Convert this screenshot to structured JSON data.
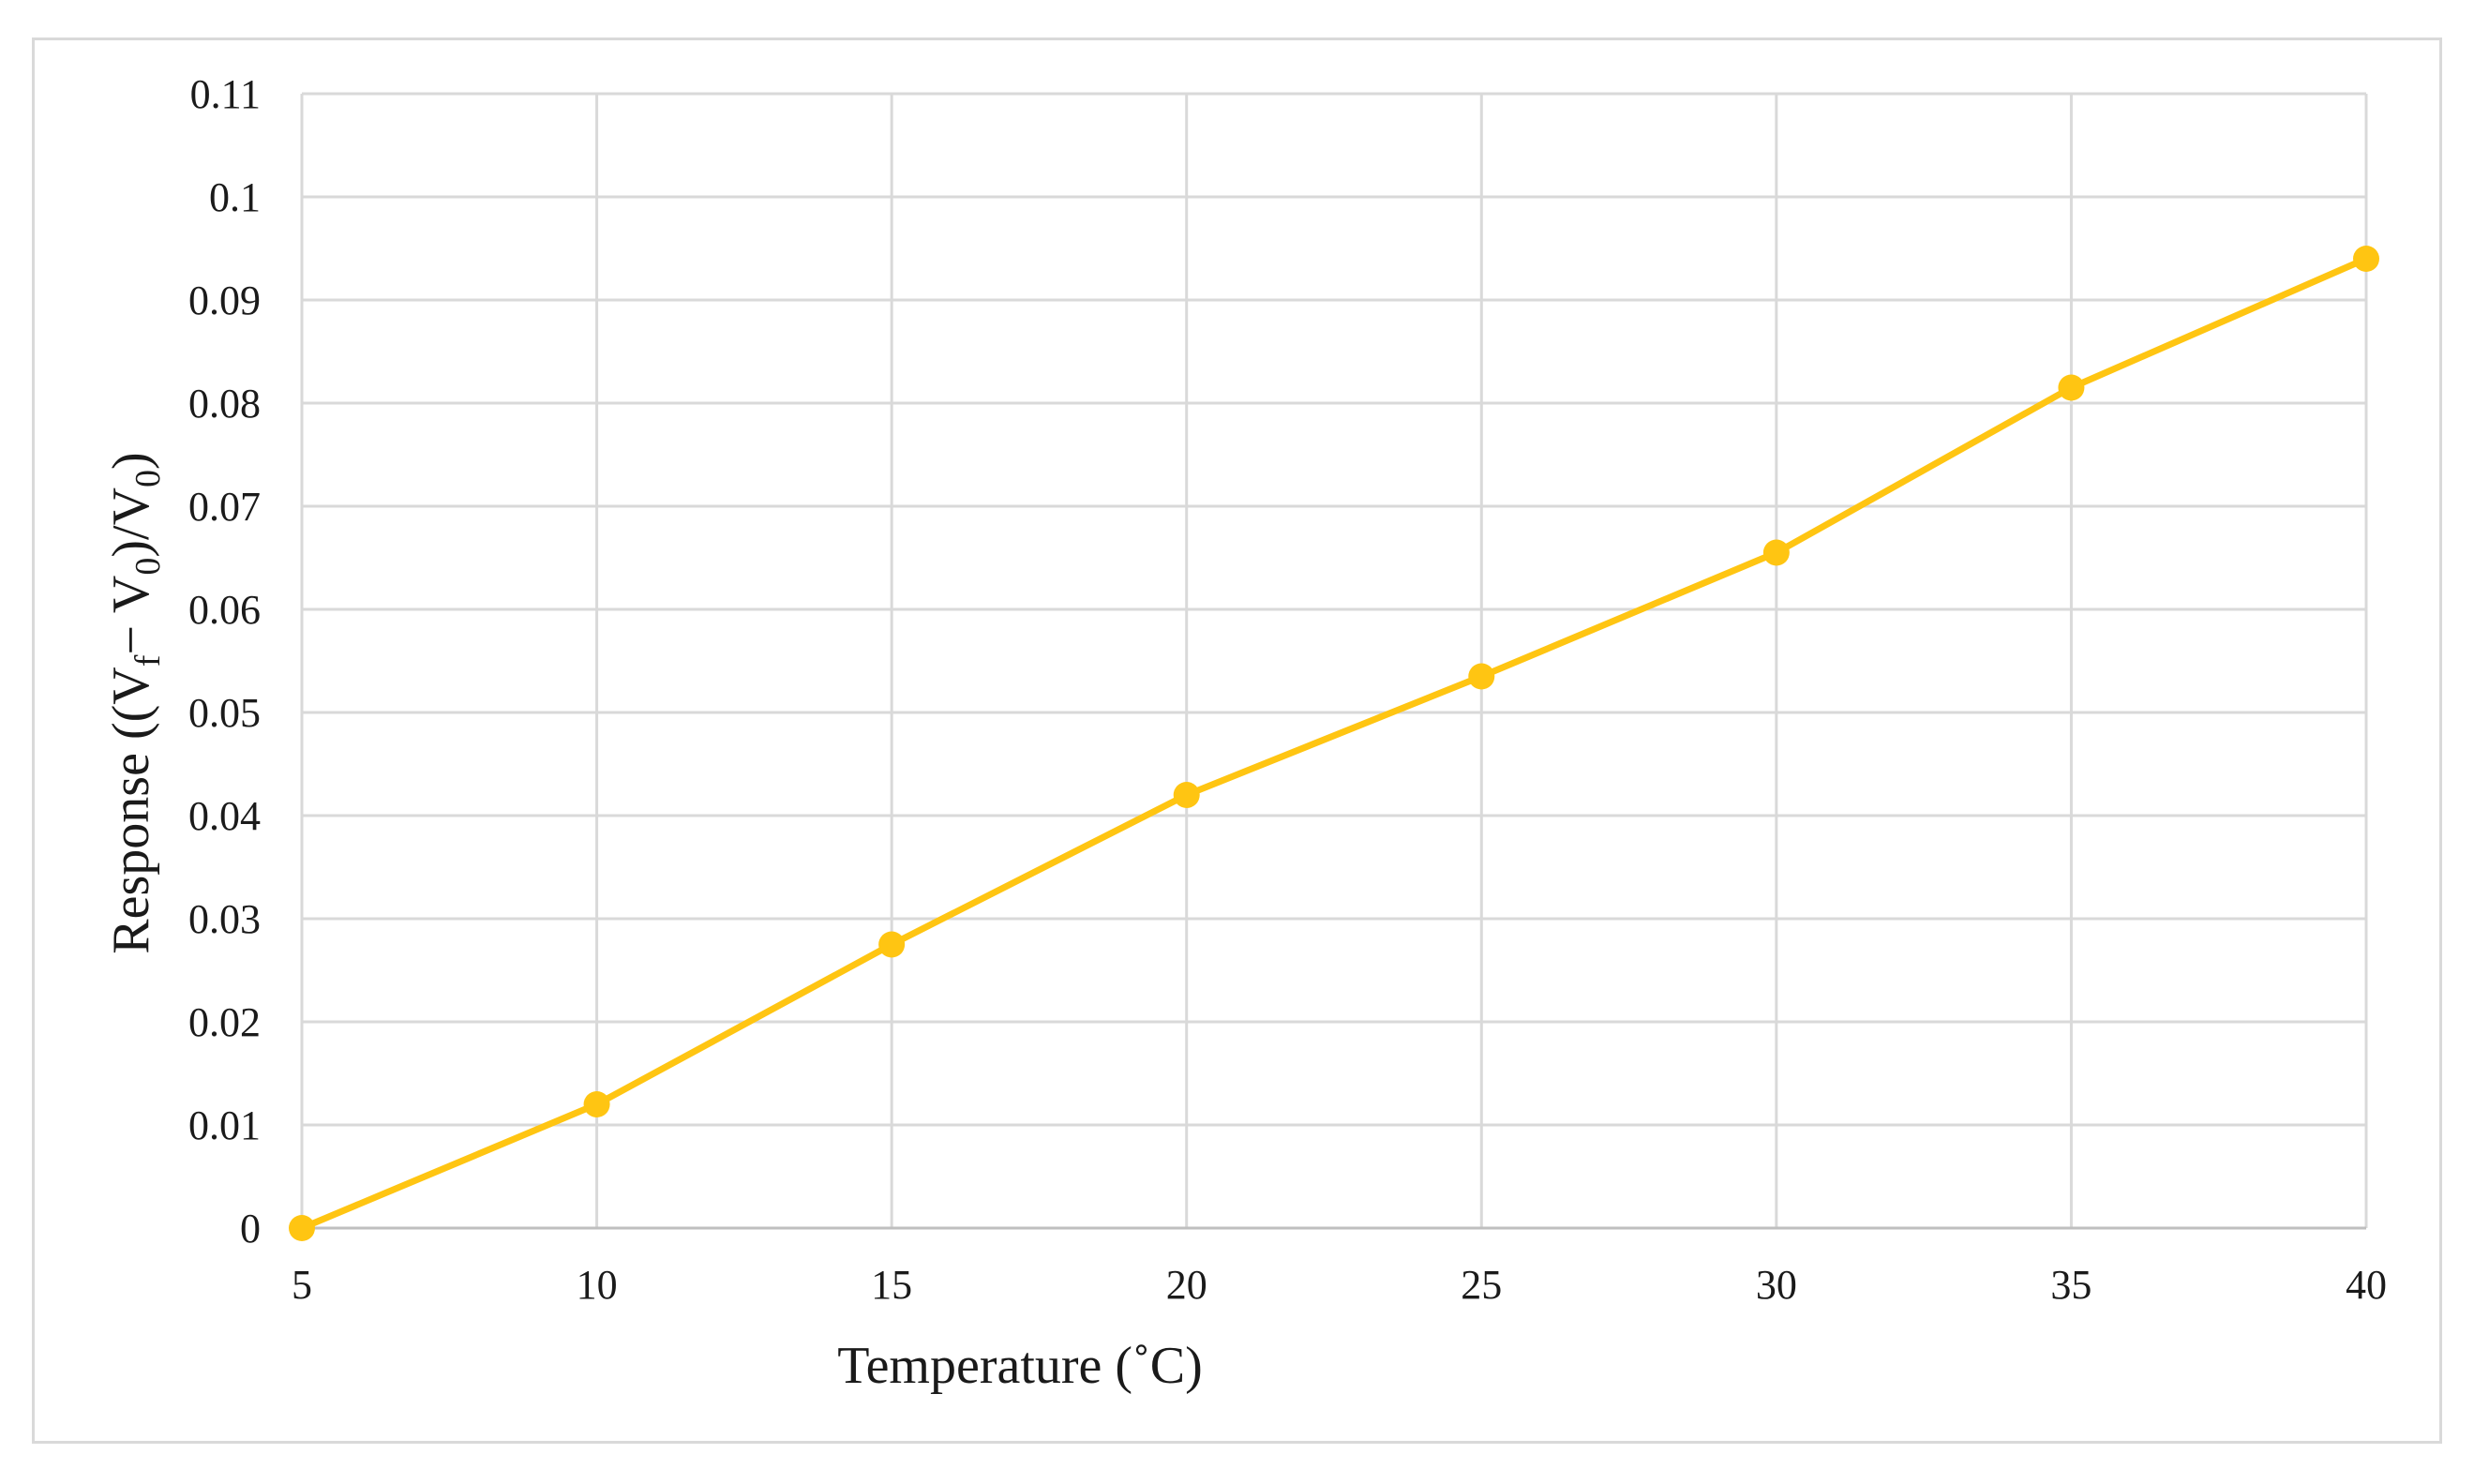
{
  "chart_data": {
    "type": "line",
    "x": [
      5,
      10,
      15,
      20,
      25,
      30,
      35,
      40
    ],
    "series": [
      {
        "values": [
          0,
          0.012,
          0.0275,
          0.042,
          0.0535,
          0.0655,
          0.0815,
          0.094
        ],
        "color": "#ffc512"
      }
    ],
    "xlabel": "Temperature (˚C)",
    "ylabel_parts": {
      "prefix": "Response ((V",
      "sub1": "f",
      "mid": "− V",
      "sub2": "0",
      "mid2": ")/V",
      "sub3": "0",
      "suffix": ")"
    },
    "xticks": [
      "5",
      "10",
      "15",
      "20",
      "25",
      "30",
      "35",
      "40"
    ],
    "yticks": [
      "0",
      "0.01",
      "0.02",
      "0.03",
      "0.04",
      "0.05",
      "0.06",
      "0.07",
      "0.08",
      "0.09",
      "0.1",
      "0.11"
    ],
    "xlim": [
      5,
      40
    ],
    "ylim": [
      0,
      0.11
    ],
    "grid": true,
    "legend": "none"
  }
}
